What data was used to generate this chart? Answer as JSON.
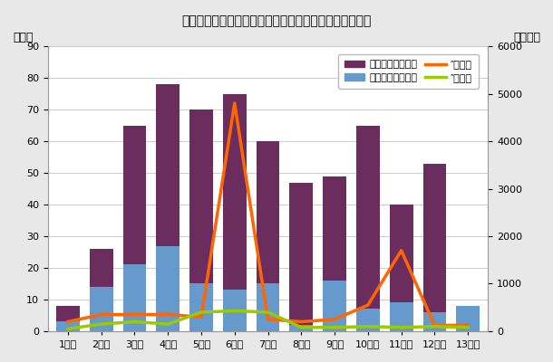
{
  "title": "東日本大震災関連倒産　震災後月次推移（集計ベース）",
  "label_left": "（件）",
  "label_right": "（億円）",
  "categories": [
    "1カ月",
    "2カ月",
    "3カ月",
    "4カ月",
    "5カ月",
    "6カ月",
    "7カ月",
    "8カ月",
    "9カ月",
    "10カ月",
    "11カ月",
    "12カ月",
    "13カ月"
  ],
  "tohoku_cases": [
    8,
    26,
    65,
    78,
    70,
    75,
    60,
    47,
    49,
    65,
    40,
    53,
    8
  ],
  "hanshin_cases": [
    3,
    14,
    21,
    27,
    15,
    13,
    15,
    2,
    16,
    7,
    9,
    6,
    8
  ],
  "tohoku_debt": [
    200,
    350,
    350,
    350,
    300,
    4800,
    250,
    200,
    250,
    550,
    1700,
    120,
    130
  ],
  "hanshin_debt": [
    50,
    150,
    200,
    150,
    400,
    430,
    400,
    80,
    80,
    100,
    80,
    100,
    80
  ],
  "ylim_left": [
    0,
    90
  ],
  "ylim_right": [
    0,
    6000
  ],
  "yticks_left": [
    0,
    10,
    20,
    30,
    40,
    50,
    60,
    70,
    80,
    90
  ],
  "yticks_right": [
    0,
    1000,
    2000,
    3000,
    4000,
    5000,
    6000
  ],
  "bar_color_tohoku": "#6b2d5e",
  "bar_color_hanshin": "#6699cc",
  "line_color_tohoku": "#ff6600",
  "line_color_hanshin": "#99cc00",
  "plot_bg": "#ffffff",
  "fig_bg": "#e8e8e8",
  "legend_label1": "東日本大震災件数",
  "legend_label2": "阪神・淡路大震災",
  "legend_label3": "″　負債",
  "legend_label4": "″　負債",
  "bar_width": 0.35
}
